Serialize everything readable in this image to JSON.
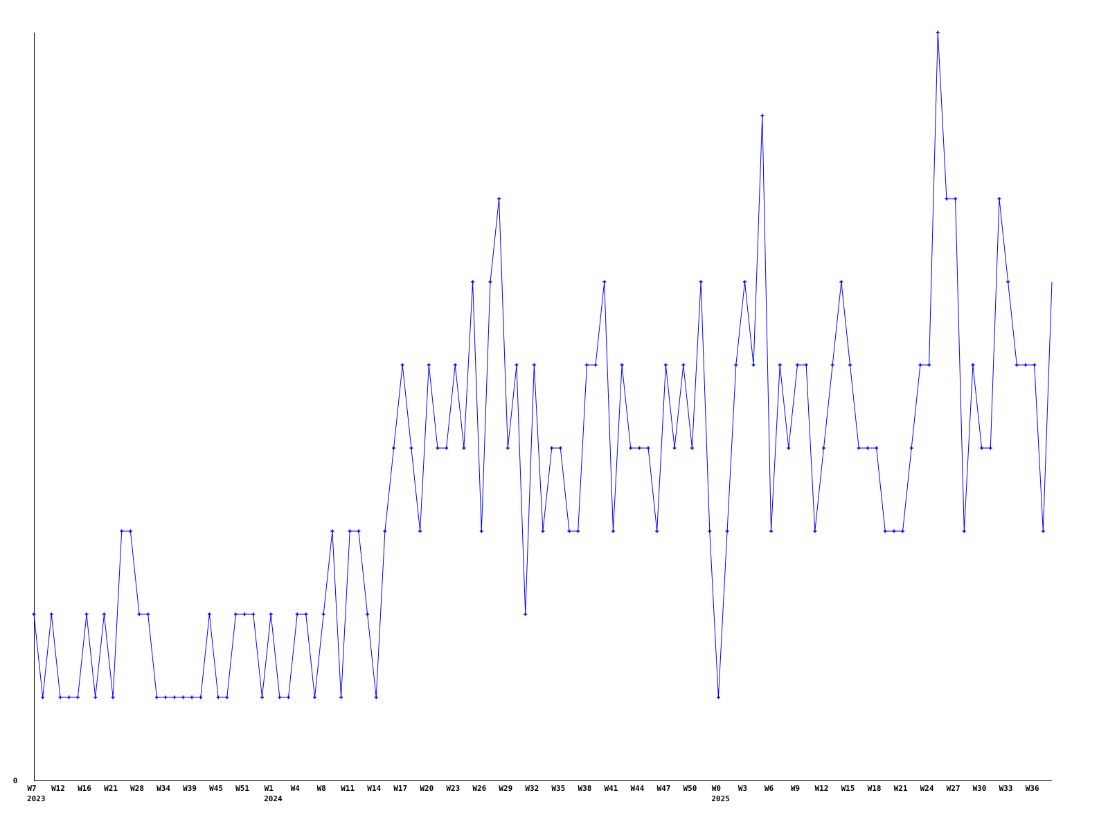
{
  "chart_data": {
    "type": "line",
    "title": "",
    "xlabel": "",
    "ylabel": "",
    "ylim": [
      0,
      9
    ],
    "y_tick_labels": [
      "0"
    ],
    "grid": false,
    "legend": "none",
    "line_color": "#0000ff",
    "axis_color": "#000000",
    "x_tick_labels": [
      "W7",
      "W12",
      "W16",
      "W21",
      "W28",
      "W34",
      "W39",
      "W45",
      "W51",
      "W1",
      "W4",
      "W8",
      "W11",
      "W14",
      "W17",
      "W20",
      "W23",
      "W26",
      "W29",
      "W32",
      "W35",
      "W38",
      "W41",
      "W44",
      "W47",
      "W50",
      "W0",
      "W3",
      "W6",
      "W9",
      "W12",
      "W15",
      "W18",
      "W21",
      "W24",
      "W27",
      "W30",
      "W33",
      "W36"
    ],
    "year_labels": [
      {
        "label": "2023",
        "at_tick": 0
      },
      {
        "label": "2024",
        "at_tick": 9
      },
      {
        "label": "2025",
        "at_tick": 26
      }
    ],
    "series": [
      {
        "values": [
          2,
          1,
          2,
          1,
          1,
          1,
          2,
          1,
          2,
          1,
          3,
          3,
          2,
          2,
          1,
          1,
          1,
          1,
          1,
          1,
          2,
          1,
          1,
          2,
          2,
          2,
          1,
          2,
          1,
          1,
          2,
          2,
          1,
          2,
          3,
          1,
          3,
          3,
          2,
          1,
          3,
          4,
          5,
          4,
          3,
          5,
          4,
          4,
          5,
          4,
          6,
          3,
          6,
          7,
          4,
          5,
          2,
          5,
          3,
          4,
          4,
          3,
          3,
          5,
          5,
          6,
          3,
          5,
          4,
          4,
          4,
          3,
          5,
          4,
          5,
          4,
          6,
          3,
          1,
          3,
          5,
          6,
          5,
          8,
          3,
          5,
          4,
          5,
          5,
          3,
          4,
          5,
          6,
          5,
          4,
          4,
          4,
          3,
          3,
          3,
          4,
          5,
          5,
          9,
          7,
          7,
          3,
          5,
          4,
          4,
          7,
          6,
          5,
          5,
          5,
          3,
          6
        ]
      }
    ]
  }
}
